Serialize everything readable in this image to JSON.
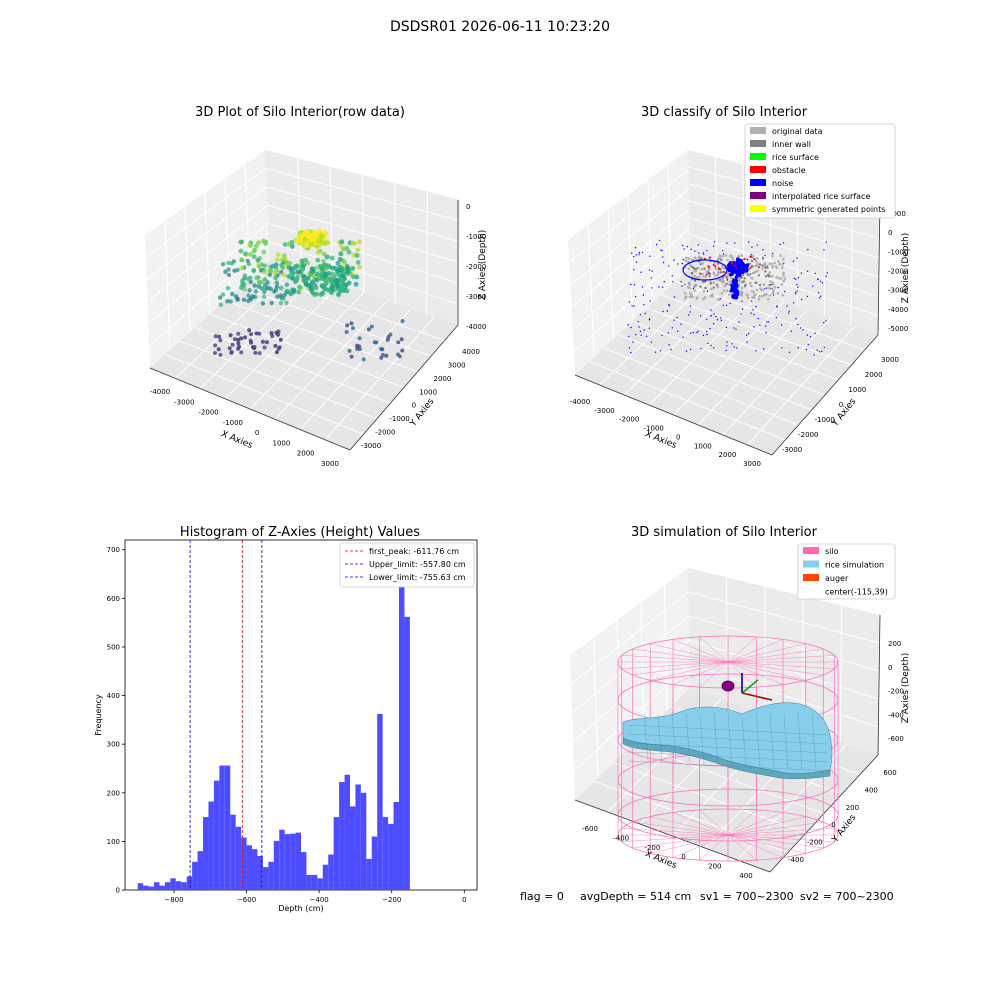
{
  "figure_title": "DSDSR01 2026-06-11 10:23:20",
  "status_line": {
    "flag": "flag = 0",
    "avg_depth": "avgDepth = 514 cm",
    "sv1": "sv1 = 700~2300",
    "sv2": "sv2 = 700~2300"
  },
  "colors": {
    "histogram_bar": "#4d4dff",
    "first_peak_line": "#e00000",
    "limit_line": "#0000e0",
    "silo_mesh": "#ff69b4",
    "rice_surface": "#87ceeb",
    "auger": "#ff4500",
    "noise": "#0000ff",
    "original_data": "#b0b0b0"
  },
  "chart_data": [
    {
      "type": "scatter",
      "subtype": "3d",
      "title": "3D Plot of Silo Interior(row data)",
      "xlabel": "X Axies",
      "ylabel": "Y Axies",
      "zlabel": "Z Axies (Depth)",
      "x_ticks": [
        "-4000",
        "-3000",
        "-2000",
        "-1000",
        "0",
        "1000",
        "2000",
        "3000"
      ],
      "y_ticks": [
        "-3000",
        "-2000",
        "-1000",
        "0",
        "1000",
        "2000",
        "3000",
        "4000"
      ],
      "z_ticks": [
        "0",
        "-1000",
        "-2000",
        "-3000",
        "-4000"
      ],
      "colormap": "viridis"
    },
    {
      "type": "scatter",
      "subtype": "3d",
      "title": "3D classify of Silo Interior",
      "xlabel": "X Axies",
      "ylabel": "Y Axies",
      "zlabel": "Z Axies (Depth)",
      "x_ticks": [
        "-4000",
        "-3000",
        "-2000",
        "-1000",
        "0",
        "1000",
        "2000",
        "3000"
      ],
      "y_ticks": [
        "-3000",
        "-2000",
        "-1000",
        "0",
        "1000",
        "2000",
        "3000"
      ],
      "z_ticks": [
        "1000",
        "0",
        "-1000",
        "-2000",
        "-3000",
        "-4000",
        "-5000"
      ],
      "legend": [
        {
          "label": "original data",
          "color": "#b0b0b0"
        },
        {
          "label": "inner wall",
          "color": "#808080"
        },
        {
          "label": "rice surface",
          "color": "#00ff00"
        },
        {
          "label": "obstacle",
          "color": "#ff0000"
        },
        {
          "label": "noise",
          "color": "#0000ff"
        },
        {
          "label": "interpolated rice surface",
          "color": "#800080"
        },
        {
          "label": "symmetric generated points",
          "color": "#ffff00"
        }
      ],
      "legend_position": "top-right"
    },
    {
      "type": "bar",
      "subtype": "histogram",
      "title": "Histogram of Z-Axies (Height) Values",
      "xlabel": "Depth (cm)",
      "ylabel": "Frequency",
      "xlim": [
        -935,
        35
      ],
      "ylim": [
        0,
        720
      ],
      "x_ticks": [
        -800,
        -600,
        -400,
        -200,
        0
      ],
      "y_ticks": [
        0,
        100,
        200,
        300,
        400,
        500,
        600,
        700
      ],
      "bin_start": -900,
      "bin_width": 15,
      "values": [
        14,
        9,
        7,
        16,
        9,
        16,
        24,
        18,
        16,
        28,
        58,
        80,
        150,
        182,
        225,
        256,
        256,
        155,
        130,
        108,
        92,
        84,
        70,
        47,
        58,
        101,
        124,
        115,
        116,
        118,
        78,
        31,
        31,
        24,
        52,
        73,
        150,
        222,
        237,
        172,
        217,
        200,
        64,
        110,
        362,
        150,
        136,
        181,
        675,
        562
      ],
      "vlines": [
        {
          "label": "first_peak: -611.76 cm",
          "x": -611.76,
          "style": "dashed",
          "color": "#e00000"
        },
        {
          "label": "Upper_limit: -557.80 cm",
          "x": -557.8,
          "style": "dashed",
          "color": "#0000e0"
        },
        {
          "label": "Lower_limit: -755.63 cm",
          "x": -755.63,
          "style": "dashed",
          "color": "#0000e0"
        }
      ],
      "legend_position": "top-right"
    },
    {
      "type": "area",
      "subtype": "3d-surface",
      "title": "3D simulation of Silo Interior",
      "xlabel": "X Axies",
      "ylabel": "Y Axies",
      "zlabel": "Z Axies (Depth)",
      "x_ticks": [
        "-600",
        "-400",
        "-200",
        "0",
        "200",
        "400"
      ],
      "y_ticks": [
        "-400",
        "-200",
        "0",
        "200",
        "400",
        "600"
      ],
      "z_ticks": [
        "200",
        "0",
        "-200",
        "-400",
        "-600"
      ],
      "legend": [
        {
          "label": "silo",
          "color": "#ff69b4"
        },
        {
          "label": "rice simulation",
          "color": "#87ceeb"
        },
        {
          "label": "auger",
          "color": "#ff4500"
        },
        {
          "label": "center(-115,39)",
          "color": ""
        }
      ],
      "legend_position": "top-right"
    }
  ]
}
